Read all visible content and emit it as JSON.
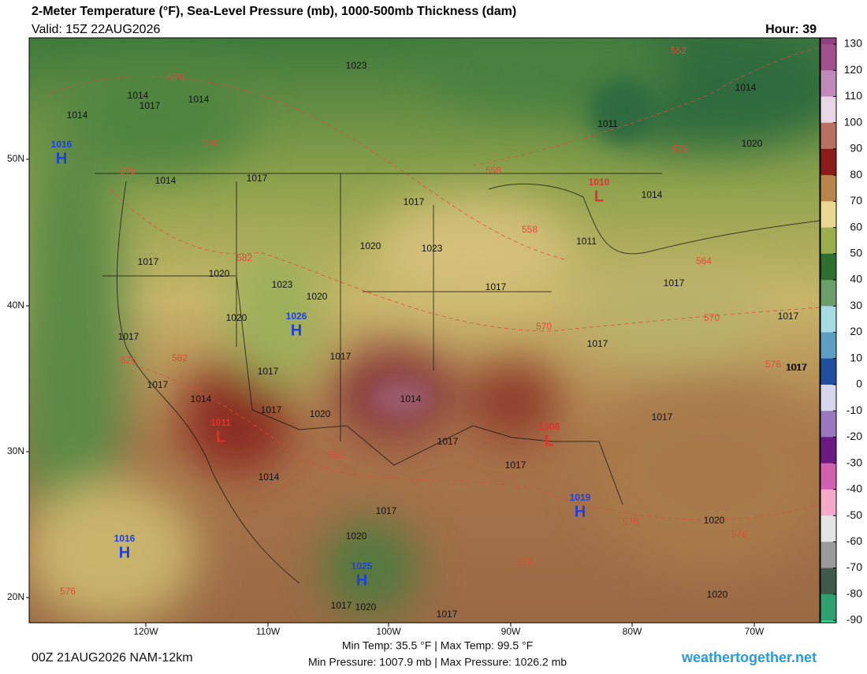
{
  "header": {
    "title": "2-Meter Temperature (°F), Sea-Level Pressure (mb), 1000-500mb Thickness (dam)",
    "valid": "Valid: 15Z 22AUG2026",
    "hour": "Hour: 39"
  },
  "colorbar": {
    "ticks": [
      130,
      120,
      110,
      100,
      90,
      80,
      70,
      60,
      50,
      40,
      30,
      20,
      10,
      0,
      -10,
      -20,
      -30,
      -40,
      -50,
      -60,
      -70,
      -80,
      -90
    ]
  },
  "lat_labels": [
    "50N",
    "40N",
    "30N",
    "20N"
  ],
  "lon_labels": [
    "120W",
    "110W",
    "100W",
    "90W",
    "80W",
    "70W"
  ],
  "pressure_centers": [
    {
      "letter": "H",
      "value": "1016"
    },
    {
      "letter": "H",
      "value": "1026"
    },
    {
      "letter": "L",
      "value": "1010"
    },
    {
      "letter": "L",
      "value": "1011"
    },
    {
      "letter": "L",
      "value": "1008"
    },
    {
      "letter": "H",
      "value": "1019"
    },
    {
      "letter": "H",
      "value": "1016"
    },
    {
      "letter": "H",
      "value": "1025"
    }
  ],
  "isobar_labels": [
    "1014",
    "1017",
    "1014",
    "1014",
    "1023",
    "1017",
    "1014",
    "1017",
    "1023",
    "1020",
    "1020",
    "1017",
    "1020",
    "1023",
    "1020",
    "1017",
    "1017",
    "1014",
    "1017",
    "1017",
    "1014",
    "1017",
    "1020",
    "1017",
    "1014",
    "1017",
    "1020",
    "1017",
    "1017",
    "1011",
    "1014",
    "1011",
    "1017",
    "1020",
    "1017",
    "1014",
    "1017",
    "1017",
    "1020",
    "1017",
    "1020",
    "1017",
    "1017",
    "1020",
    "1017"
  ],
  "thickness_labels": [
    "570",
    "576",
    "570",
    "552",
    "558",
    "558",
    "576",
    "564",
    "570",
    "576",
    "582",
    "582",
    "576",
    "570",
    "582",
    "576",
    "576",
    "576",
    "576"
  ],
  "footer": {
    "run": "00Z 21AUG2026 NAM-12km",
    "temp": "Min Temp:  35.5 °F | Max Temp:  99.5 °F",
    "pressure": "Min Pressure: 1007.9 mb | Max Pressure: 1026.2 mb",
    "site": "weathertogether.net"
  }
}
